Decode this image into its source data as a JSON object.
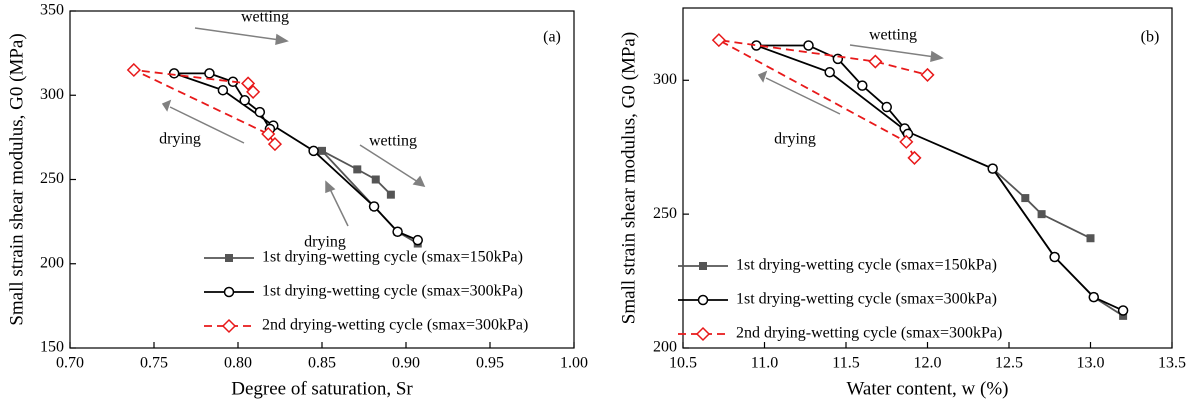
{
  "chart_data": [
    {
      "type": "line",
      "panel_label": "(a)",
      "x_label": "Degree of saturation, Sr",
      "y_label": "Small strain shear modulus, G0 (MPa)",
      "xlim": [
        0.7,
        1.0
      ],
      "ylim": [
        150,
        350
      ],
      "xticks": [
        {
          "value": 0.7,
          "label": "0.70"
        },
        0.75,
        {
          "value": 0.8,
          "label": "0.80"
        },
        0.85,
        {
          "value": 0.9,
          "label": "0.90"
        },
        0.95,
        {
          "value": 1.0,
          "label": "1.00"
        }
      ],
      "yticks": [
        150,
        200,
        250,
        300,
        350
      ],
      "annotations": [
        "wetting",
        "drying",
        "wetting",
        "drying"
      ],
      "series": [
        {
          "name": "1st drying-wetting cycle (smax=150kPa)",
          "color": "#555555",
          "marker": "square",
          "dash": false,
          "x": [
            0.907,
            0.895,
            0.881,
            0.85,
            0.871,
            0.882,
            0.891
          ],
          "values": [
            212,
            219,
            234,
            267,
            256,
            250,
            241
          ]
        },
        {
          "name": "1st drying-wetting cycle (smax=300kPa)",
          "color": "#000000",
          "marker": "circle",
          "dash": false,
          "x": [
            0.907,
            0.895,
            0.881,
            0.845,
            0.821,
            0.791,
            0.762,
            0.783,
            0.797,
            0.804,
            0.813,
            0.819
          ],
          "values": [
            214,
            219,
            234,
            267,
            282,
            303,
            313,
            313,
            308,
            297,
            290,
            280
          ]
        },
        {
          "name": "2nd drying-wetting cycle (smax=300kPa)",
          "color": "#e8191a",
          "marker": "diamond",
          "dash": true,
          "x": [
            0.822,
            0.818,
            0.738,
            0.806,
            0.809
          ],
          "values": [
            271,
            277,
            315,
            307,
            302
          ]
        }
      ]
    },
    {
      "type": "line",
      "panel_label": "(b)",
      "x_label": "Water content, w (%)",
      "y_label": "Small strain shear modulus, G0 (MPa)",
      "xlim": [
        10.5,
        13.5
      ],
      "ylim": [
        200,
        327
      ],
      "xticks": [
        10.5,
        {
          "value": 11,
          "label": "11.0"
        },
        11.5,
        {
          "value": 12,
          "label": "12.0"
        },
        12.5,
        {
          "value": 13,
          "label": "13.0"
        },
        13.5
      ],
      "yticks": [
        200,
        250,
        300
      ],
      "annotations": [
        "wetting",
        "drying"
      ],
      "series": [
        {
          "name": "1st drying-wetting cycle (smax=150kPa)",
          "color": "#555555",
          "marker": "square",
          "dash": false,
          "x": [
            13.2,
            13.02,
            12.78,
            12.4,
            12.6,
            12.7,
            13.0
          ],
          "values": [
            212,
            219,
            234,
            267,
            256,
            250,
            241
          ]
        },
        {
          "name": "1st drying-wetting cycle (smax=300kPa)",
          "color": "#000000",
          "marker": "circle",
          "dash": false,
          "x": [
            13.2,
            13.02,
            12.78,
            12.4,
            11.87,
            11.4,
            10.95,
            11.27,
            11.45,
            11.6,
            11.75,
            11.86,
            11.88
          ],
          "values": [
            214,
            219,
            234,
            267,
            281,
            303,
            313,
            313,
            308,
            298,
            290,
            282,
            280
          ]
        },
        {
          "name": "2nd drying-wetting cycle (smax=300kPa)",
          "color": "#e8191a",
          "marker": "diamond",
          "dash": true,
          "x": [
            11.92,
            11.87,
            10.72,
            11.68,
            12.0
          ],
          "values": [
            271,
            277,
            315,
            307,
            302
          ]
        }
      ]
    }
  ]
}
